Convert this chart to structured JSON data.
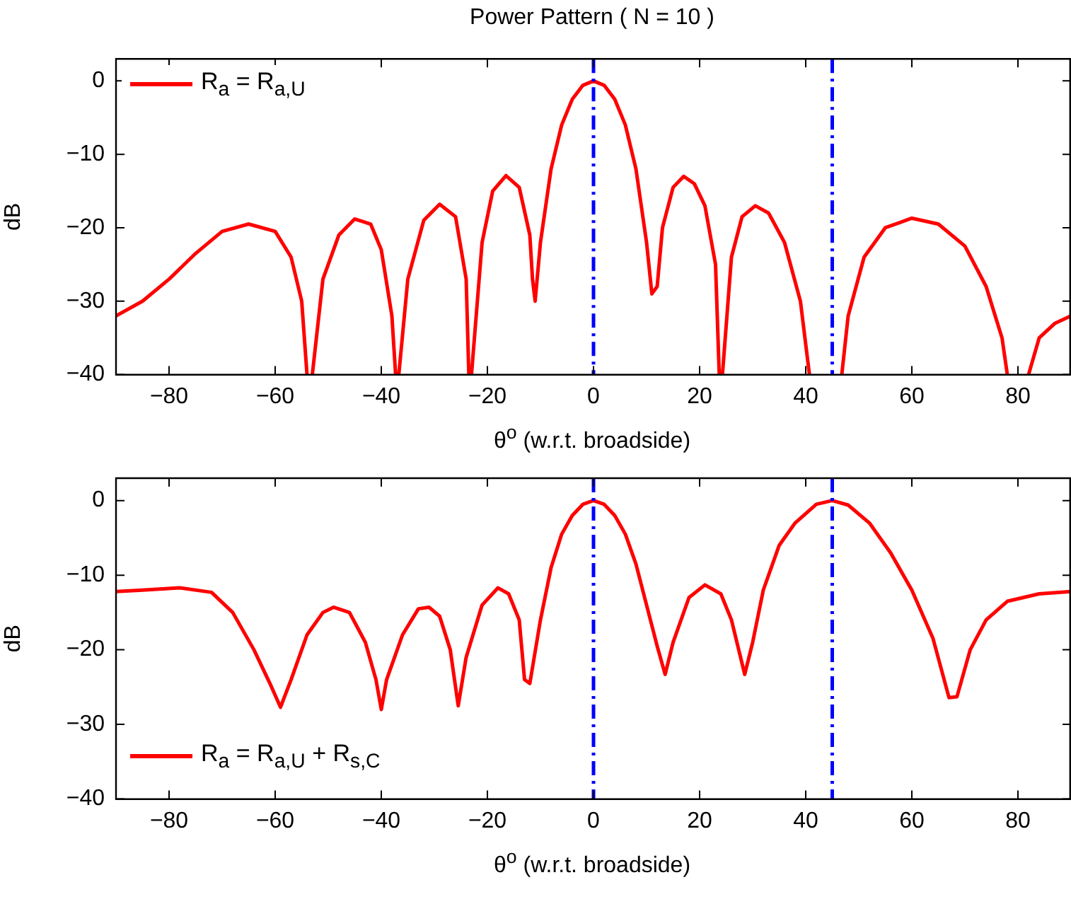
{
  "chart_data": [
    {
      "type": "line",
      "title": "Power Pattern ( N = 10 )",
      "xlabel": "θ$^{o}$ (w.r.t. broadside)",
      "ylabel": "dB",
      "xlim": [
        -90,
        90
      ],
      "xticks": [
        -80,
        -60,
        -40,
        -20,
        0,
        20,
        40,
        60,
        80
      ],
      "ylim": [
        -40,
        3
      ],
      "yticks": [
        -40,
        -30,
        -20,
        -10,
        0
      ],
      "grid": false,
      "legend": "top left",
      "marker": "none",
      "line_style": "solid",
      "ref_lines": [
        {
          "axis": "x",
          "value": 0,
          "color": "#0000ff",
          "line_style": "dashed"
        },
        {
          "axis": "x",
          "value": 45,
          "color": "#0000ff",
          "line_style": "dashed"
        }
      ],
      "series": [
        {
          "name": "R$_{a}$ = R$_{a,U}$",
          "color": "#ff0000",
          "x": [
            -90,
            -85,
            -80,
            -75,
            -70,
            -65,
            -60,
            -57,
            -55,
            -54,
            -53.5,
            -53,
            -51,
            -48,
            -45,
            -42,
            -40,
            -38,
            -37.3,
            -37,
            -36.7,
            -35,
            -32,
            -29,
            -26,
            -24,
            -23.5,
            -23.2,
            -23,
            -21,
            -19,
            -16.5,
            -14,
            -12,
            -11.5,
            -11,
            -10,
            -8,
            -6,
            -4,
            -2,
            0,
            2,
            4,
            6,
            8,
            10,
            11,
            12,
            13,
            15,
            17,
            19,
            21,
            23,
            23.7,
            24,
            24.3,
            26,
            28,
            30.5,
            33,
            36,
            39,
            40.7,
            44,
            46.8,
            48,
            51,
            55,
            60,
            65,
            70,
            74,
            77,
            78,
            80,
            82,
            84,
            87,
            90
          ],
          "values": [
            -32,
            -30,
            -27,
            -23.5,
            -20.5,
            -19.5,
            -20.5,
            -24,
            -30,
            -40,
            null,
            -40,
            -27,
            -21,
            -18.8,
            -19.5,
            -23,
            -32,
            -40,
            null,
            -40,
            -27,
            -19,
            -16.8,
            -18.5,
            -27,
            -40,
            null,
            -40,
            -22,
            -15,
            -12.9,
            -14.5,
            -21,
            -27,
            -30,
            -22,
            -12,
            -6,
            -2.5,
            -0.6,
            0,
            -0.6,
            -2.5,
            -6,
            -12,
            -22,
            -29,
            -28,
            -20,
            -14.5,
            -13,
            -14,
            -17,
            -25,
            -40,
            null,
            -40,
            -24,
            -18.5,
            -17,
            -18,
            -22,
            -30,
            -40,
            null,
            -40,
            -32,
            -24,
            -20,
            -18.7,
            -19.5,
            -22.5,
            -28,
            -35,
            -40,
            null,
            -40,
            -35,
            -33,
            -32
          ]
        }
      ]
    },
    {
      "type": "line",
      "xlabel": "θ$^{o}$ (w.r.t. broadside)",
      "ylabel": "dB",
      "xlim": [
        -90,
        90
      ],
      "xticks": [
        -80,
        -60,
        -40,
        -20,
        0,
        20,
        40,
        60,
        80
      ],
      "ylim": [
        -40,
        3
      ],
      "yticks": [
        -40,
        -30,
        -20,
        -10,
        0
      ],
      "grid": false,
      "legend": "bottom left",
      "marker": "none",
      "line_style": "solid",
      "ref_lines": [
        {
          "axis": "x",
          "value": 0,
          "color": "#0000ff",
          "line_style": "dashed"
        },
        {
          "axis": "x",
          "value": 45,
          "color": "#0000ff",
          "line_style": "dashed"
        }
      ],
      "series": [
        {
          "name": "R$_{a}$ = R$_{a,U}$ + R$_{s,C}$",
          "color": "#ff0000",
          "x": [
            -90,
            -85,
            -78,
            -72,
            -68,
            -64,
            -61,
            -59,
            -57,
            -54,
            -51,
            -49,
            -46,
            -43,
            -41,
            -40,
            -39,
            -36,
            -33,
            -31,
            -29,
            -27,
            -25.5,
            -24,
            -21,
            -18,
            -16,
            -14,
            -13,
            -12,
            -10,
            -8,
            -6,
            -4,
            -2,
            0,
            2,
            4,
            6,
            8,
            10,
            12,
            13.5,
            15,
            18,
            21,
            24,
            26,
            28.5,
            30,
            32,
            35,
            38,
            42,
            45,
            48,
            52,
            56,
            60,
            64,
            67,
            68.5,
            71,
            74,
            78,
            84,
            90
          ],
          "values": [
            -12.2,
            -12,
            -11.7,
            -12.3,
            -15,
            -20,
            -24.5,
            -27.7,
            -24,
            -18,
            -15,
            -14.3,
            -15,
            -19,
            -24,
            -28,
            -24,
            -18,
            -14.5,
            -14.3,
            -15.5,
            -20,
            -27.5,
            -21,
            -14,
            -11.7,
            -12.5,
            -16,
            -24,
            -24.5,
            -16,
            -9,
            -4.5,
            -2,
            -0.5,
            0,
            -0.5,
            -2,
            -4.5,
            -8.5,
            -14,
            -19.5,
            -23.3,
            -19,
            -13,
            -11.3,
            -12.5,
            -16,
            -23.3,
            -19,
            -12,
            -6,
            -3,
            -0.5,
            0,
            -0.6,
            -3,
            -7,
            -12,
            -18.5,
            -26.4,
            -26.3,
            -20,
            -16,
            -13.5,
            -12.5,
            -12.2
          ]
        }
      ]
    }
  ]
}
